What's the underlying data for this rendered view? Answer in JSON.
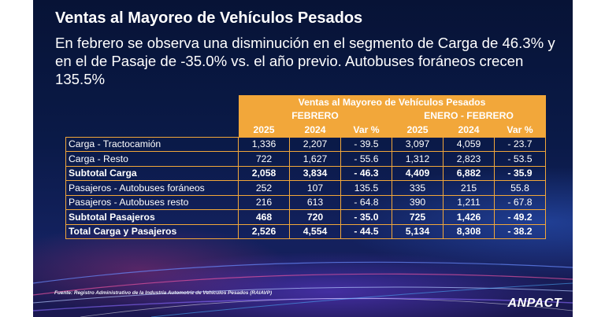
{
  "title": "Ventas al Mayoreo de Vehículos Pesados",
  "subtitle": "En febrero se observa una disminución en el segmento de Carga de 46.3% y en el de Pasaje de -35.0% vs. el año previo. Autobuses foráneos crecen 135.5%",
  "table": {
    "header_title": "Ventas al Mayoreo de Vehículos Pesados",
    "group_feb": "FEBRERO",
    "group_ytd": "ENERO - FEBRERO",
    "columns": [
      "2025",
      "2024",
      "Var %",
      "2025",
      "2024",
      "Var %"
    ],
    "rows": [
      {
        "label": "Carga - Tractocamión",
        "bold": false,
        "values": [
          "1,336",
          "2,207",
          "- 39.5",
          "3,097",
          "4,059",
          "- 23.7"
        ]
      },
      {
        "label": "Carga - Resto",
        "bold": false,
        "values": [
          "722",
          "1,627",
          "- 55.6",
          "1,312",
          "2,823",
          "- 53.5"
        ]
      },
      {
        "label": "Subtotal Carga",
        "bold": true,
        "values": [
          "2,058",
          "3,834",
          "- 46.3",
          "4,409",
          "6,882",
          "- 35.9"
        ]
      },
      {
        "label": "Pasajeros - Autobuses foráneos",
        "bold": false,
        "values": [
          "252",
          "107",
          "135.5",
          "335",
          "215",
          "55.8"
        ]
      },
      {
        "label": "Pasajeros - Autobuses resto",
        "bold": false,
        "values": [
          "216",
          "613",
          "- 64.8",
          "390",
          "1,211",
          "- 67.8"
        ]
      },
      {
        "label": "Subtotal Pasajeros",
        "bold": true,
        "values": [
          "468",
          "720",
          "- 35.0",
          "725",
          "1,426",
          "- 49.2"
        ]
      },
      {
        "label": "Total Carga y Pasajeros",
        "bold": true,
        "values": [
          "2,526",
          "4,554",
          "- 44.5",
          "5,134",
          "8,308",
          "- 38.2"
        ]
      }
    ]
  },
  "source": "Fuente: Registro Administrativo de la Industria Automotriz de Vehículos Pesados (RAIAVP)",
  "logo": "ANPACT",
  "colors": {
    "accent": "#f2a73a",
    "background": "#0a1a48"
  }
}
